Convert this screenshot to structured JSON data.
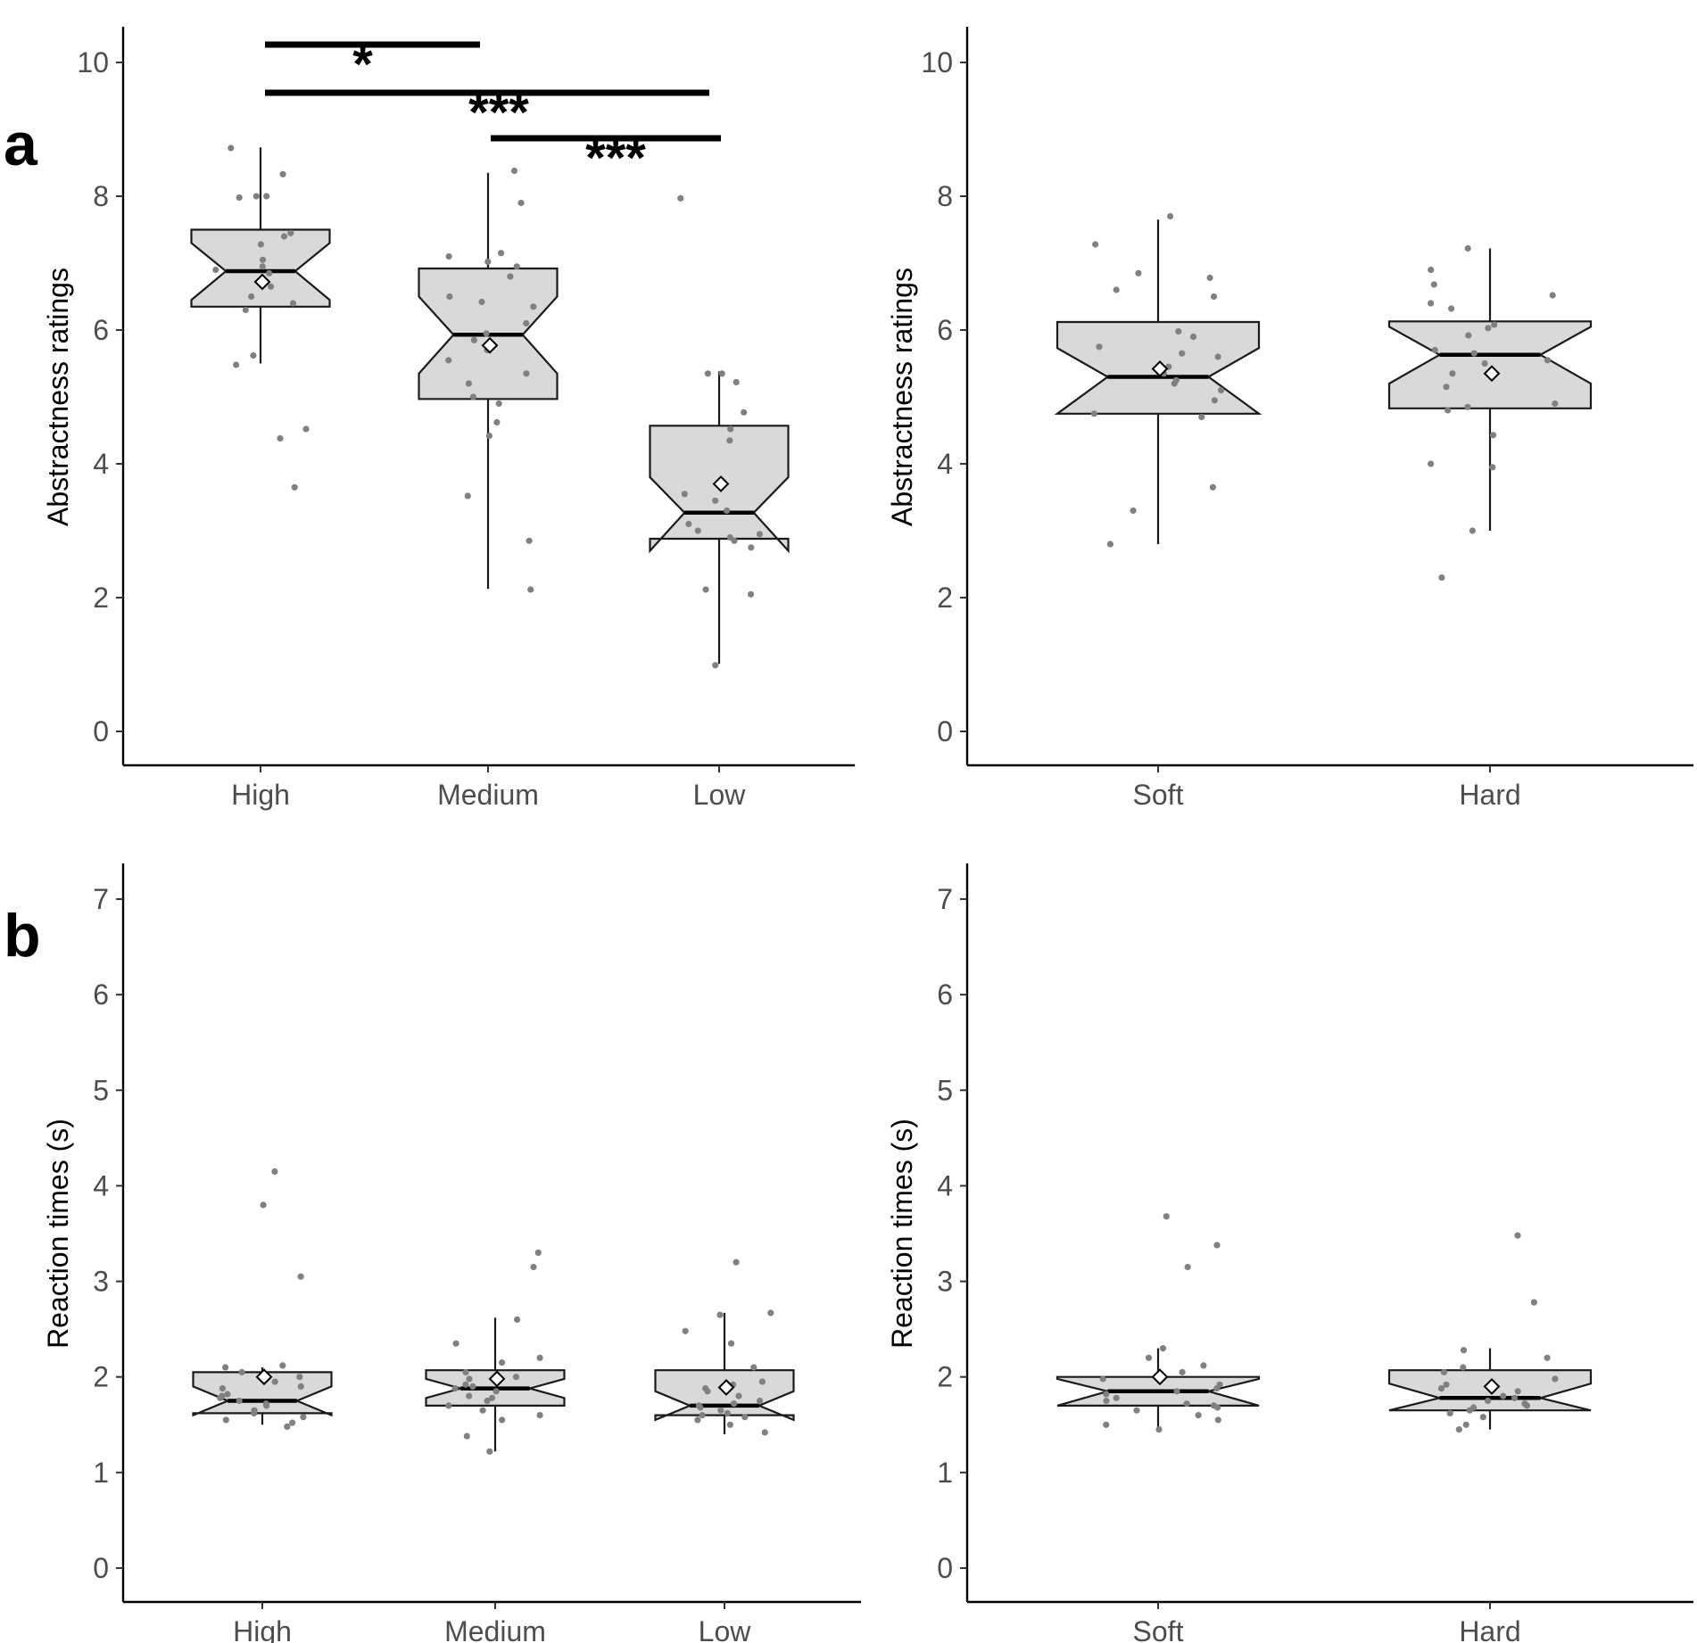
{
  "panel_labels": [
    "a",
    "b"
  ],
  "chart_data": [
    {
      "type": "box",
      "panel": "a",
      "ylabel": "Abstractness ratings",
      "ylim": [
        0,
        10
      ],
      "yticks": [
        0,
        2,
        4,
        6,
        8,
        10
      ],
      "categories": [
        "High",
        "Medium",
        "Low"
      ],
      "boxes": [
        {
          "category": "High",
          "q1": 6.35,
          "median": 6.88,
          "q3": 7.5,
          "whisker_low": 5.5,
          "whisker_high": 8.73,
          "notch_low": 6.45,
          "notch_high": 7.3,
          "mean": 6.72,
          "points": [
            8.72,
            8.33,
            8.0,
            8.0,
            7.98,
            7.45,
            7.4,
            7.28,
            7.05,
            6.95,
            6.9,
            6.85,
            6.65,
            6.5,
            6.4,
            6.3,
            5.62,
            5.48,
            4.52,
            4.38,
            3.65
          ]
        },
        {
          "category": "Medium",
          "q1": 4.97,
          "median": 5.93,
          "q3": 6.92,
          "whisker_low": 2.13,
          "whisker_high": 8.35,
          "notch_low": 5.35,
          "notch_high": 6.5,
          "mean": 5.77,
          "points": [
            8.38,
            7.9,
            7.15,
            7.1,
            7.02,
            6.95,
            6.8,
            6.5,
            6.42,
            6.35,
            6.1,
            5.95,
            5.85,
            5.7,
            5.55,
            5.35,
            5.2,
            5.0,
            4.9,
            4.62,
            4.42,
            3.52,
            2.85,
            2.12
          ]
        },
        {
          "category": "Low",
          "q1": 2.88,
          "median": 3.27,
          "q3": 4.57,
          "whisker_low": 1.01,
          "whisker_high": 5.38,
          "notch_low": 2.7,
          "notch_high": 3.8,
          "mean": 3.7,
          "points": [
            7.97,
            5.35,
            5.35,
            5.22,
            4.77,
            4.52,
            4.35,
            3.55,
            3.45,
            3.3,
            3.1,
            3.0,
            2.95,
            2.9,
            2.85,
            2.75,
            2.12,
            2.05,
            0.99
          ]
        }
      ],
      "significance": [
        {
          "from": "High",
          "to": "Medium",
          "label": "*"
        },
        {
          "from": "High",
          "to": "Low",
          "label": "***"
        },
        {
          "from": "Medium",
          "to": "Low",
          "label": "***"
        }
      ]
    },
    {
      "type": "box",
      "panel": "a",
      "ylabel": "Abstractness ratings",
      "ylim": [
        0,
        10
      ],
      "yticks": [
        0,
        2,
        4,
        6,
        8,
        10
      ],
      "categories": [
        "Soft",
        "Hard"
      ],
      "boxes": [
        {
          "category": "Soft",
          "q1": 4.75,
          "median": 5.3,
          "q3": 6.12,
          "whisker_low": 2.8,
          "whisker_high": 7.65,
          "notch_low": 4.75,
          "notch_high": 5.73,
          "mean": 5.42,
          "points": [
            7.7,
            7.28,
            6.85,
            6.78,
            6.6,
            6.5,
            5.98,
            5.9,
            5.75,
            5.65,
            5.6,
            5.45,
            5.35,
            5.25,
            5.2,
            5.1,
            4.95,
            4.75,
            4.7,
            3.65,
            3.3,
            2.8
          ]
        },
        {
          "category": "Hard",
          "q1": 4.83,
          "median": 5.63,
          "q3": 6.13,
          "whisker_low": 3.0,
          "whisker_high": 7.22,
          "notch_low": 5.2,
          "notch_high": 6.05,
          "mean": 5.35,
          "points": [
            7.22,
            6.9,
            6.68,
            6.52,
            6.4,
            6.32,
            6.08,
            6.03,
            5.92,
            5.7,
            5.65,
            5.55,
            5.5,
            5.35,
            5.15,
            4.9,
            4.85,
            4.8,
            4.43,
            4.0,
            3.95,
            3.0,
            2.3
          ]
        }
      ]
    },
    {
      "type": "box",
      "panel": "b",
      "ylabel": "Reaction times (s)",
      "ylim": [
        0,
        7
      ],
      "yticks": [
        0,
        1,
        2,
        3,
        4,
        5,
        6,
        7
      ],
      "categories": [
        "High",
        "Medium",
        "Low"
      ],
      "boxes": [
        {
          "category": "High",
          "q1": 1.62,
          "median": 1.75,
          "q3": 2.05,
          "whisker_low": 1.5,
          "whisker_high": 2.1,
          "notch_low": 1.6,
          "notch_high": 1.9,
          "mean": 2.0,
          "points": [
            4.15,
            3.8,
            3.05,
            2.12,
            2.1,
            2.05,
            2.0,
            1.95,
            1.9,
            1.88,
            1.82,
            1.8,
            1.78,
            1.75,
            1.72,
            1.7,
            1.65,
            1.62,
            1.58,
            1.55,
            1.52,
            1.48
          ]
        },
        {
          "category": "Medium",
          "q1": 1.7,
          "median": 1.88,
          "q3": 2.07,
          "whisker_low": 1.22,
          "whisker_high": 2.62,
          "notch_low": 1.78,
          "notch_high": 1.98,
          "mean": 1.98,
          "points": [
            3.3,
            3.15,
            2.6,
            2.35,
            2.2,
            2.15,
            2.05,
            2.0,
            1.98,
            1.92,
            1.9,
            1.88,
            1.85,
            1.8,
            1.78,
            1.75,
            1.7,
            1.65,
            1.6,
            1.55,
            1.38,
            1.22
          ]
        },
        {
          "category": "Low",
          "q1": 1.6,
          "median": 1.7,
          "q3": 2.07,
          "whisker_low": 1.4,
          "whisker_high": 2.67,
          "notch_low": 1.55,
          "notch_high": 1.85,
          "mean": 1.89,
          "points": [
            3.2,
            2.67,
            2.65,
            2.48,
            2.35,
            2.1,
            1.95,
            1.92,
            1.88,
            1.85,
            1.8,
            1.75,
            1.72,
            1.7,
            1.68,
            1.65,
            1.62,
            1.6,
            1.58,
            1.55,
            1.5,
            1.42
          ]
        }
      ]
    },
    {
      "type": "box",
      "panel": "b",
      "ylabel": "Reaction times (s)",
      "ylim": [
        0,
        7
      ],
      "yticks": [
        0,
        1,
        2,
        3,
        4,
        5,
        6,
        7
      ],
      "categories": [
        "Soft",
        "Hard"
      ],
      "boxes": [
        {
          "category": "Soft",
          "q1": 1.7,
          "median": 1.85,
          "q3": 2.0,
          "whisker_low": 1.45,
          "whisker_high": 2.3,
          "notch_low": 1.7,
          "notch_high": 1.98,
          "mean": 2.0,
          "points": [
            3.68,
            3.38,
            3.15,
            2.3,
            2.2,
            2.12,
            2.05,
            1.98,
            1.92,
            1.88,
            1.85,
            1.82,
            1.78,
            1.75,
            1.72,
            1.7,
            1.68,
            1.65,
            1.6,
            1.55,
            1.5,
            1.45
          ]
        },
        {
          "category": "Hard",
          "q1": 1.65,
          "median": 1.78,
          "q3": 2.07,
          "whisker_low": 1.45,
          "whisker_high": 2.3,
          "notch_low": 1.65,
          "notch_high": 1.93,
          "mean": 1.9,
          "points": [
            3.48,
            2.78,
            2.28,
            2.2,
            2.1,
            2.05,
            1.98,
            1.92,
            1.88,
            1.85,
            1.8,
            1.78,
            1.75,
            1.72,
            1.7,
            1.68,
            1.65,
            1.62,
            1.58,
            1.5,
            1.45
          ]
        }
      ]
    }
  ]
}
